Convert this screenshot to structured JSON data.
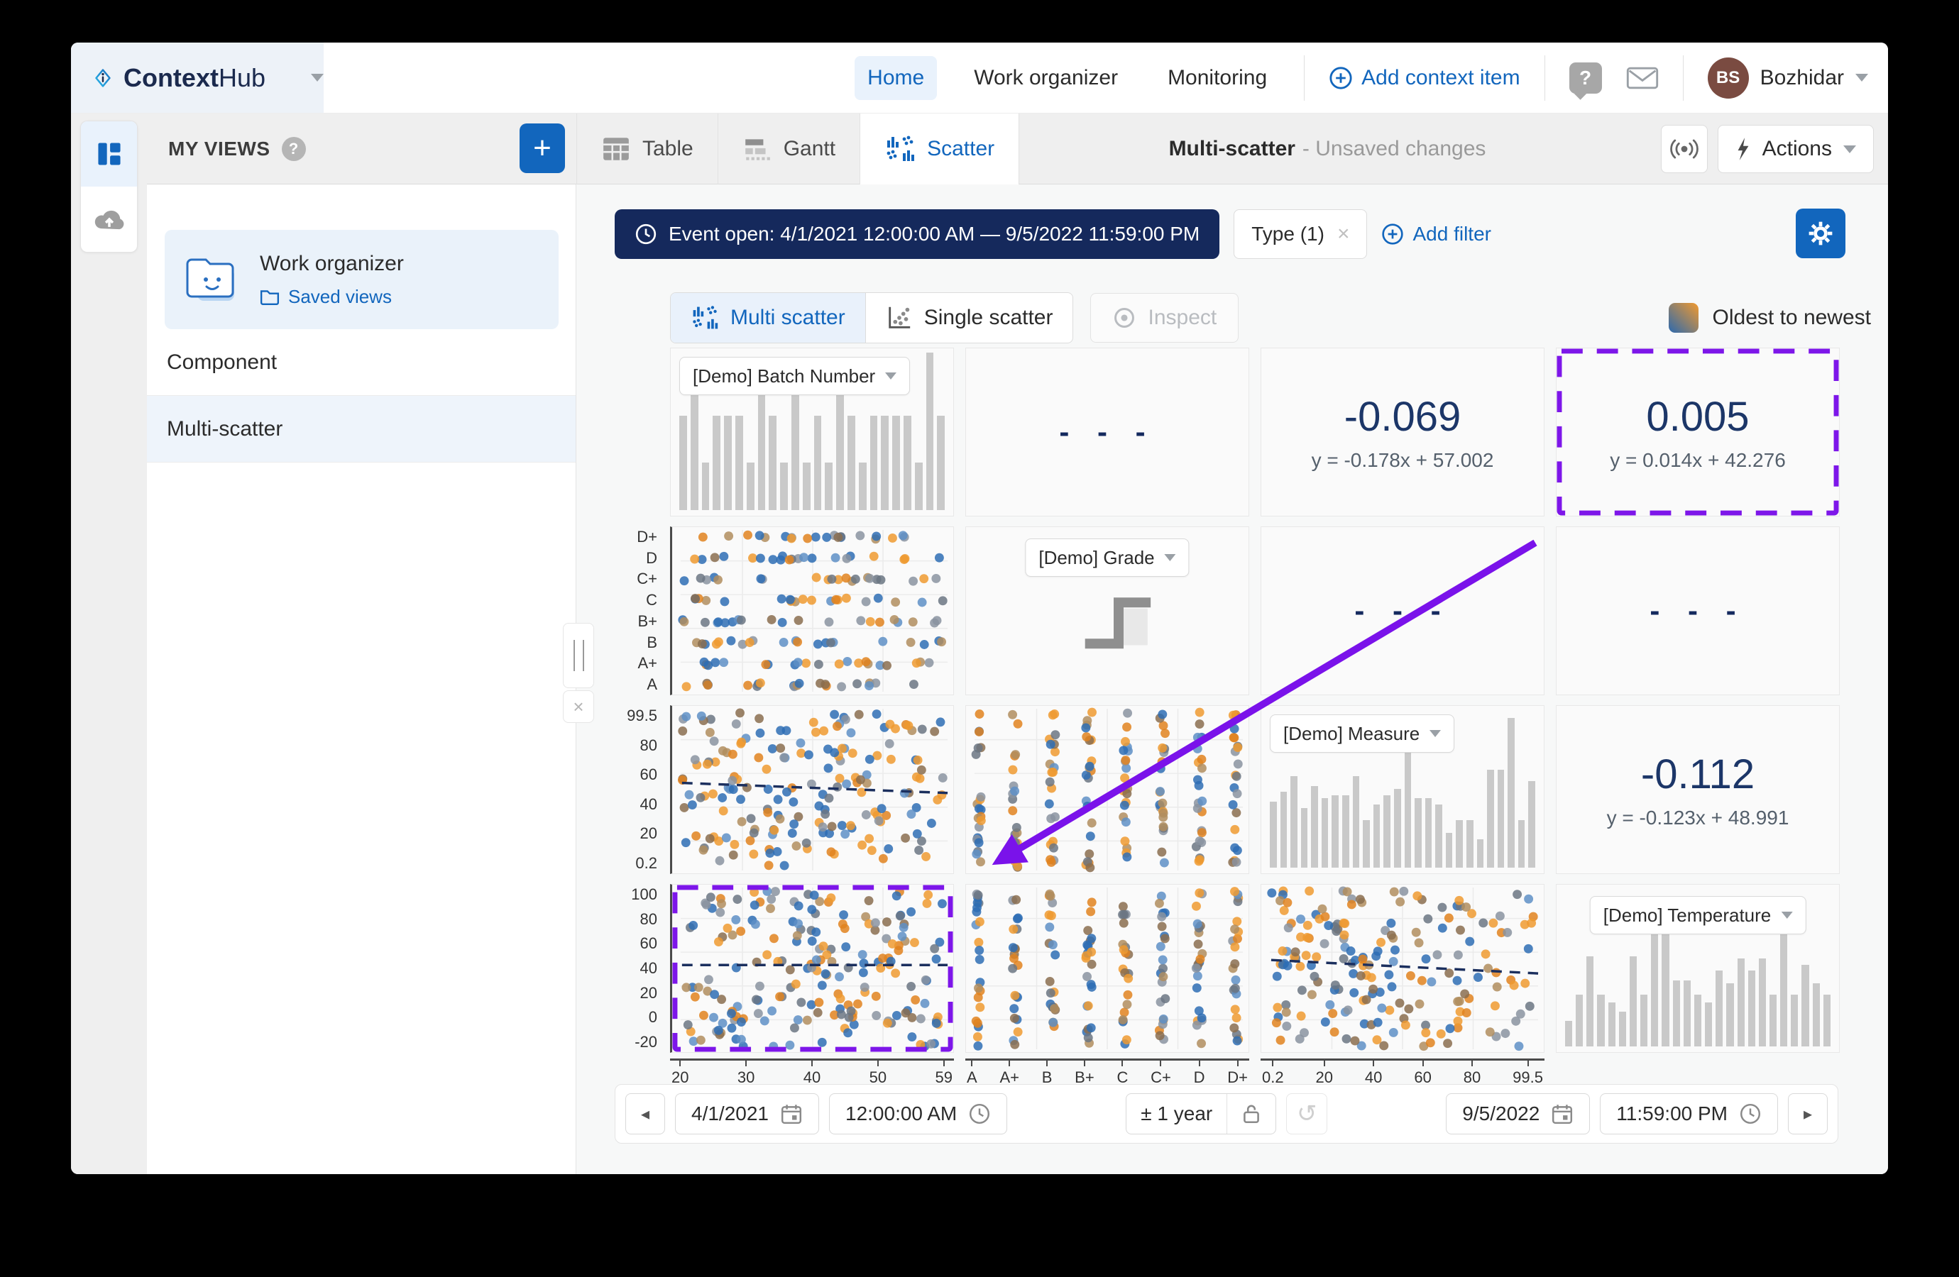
{
  "nav": {
    "brand_bold": "Context",
    "brand_light": "Hub",
    "items": [
      {
        "label": "Home",
        "active": true
      },
      {
        "label": "Work organizer",
        "active": false
      },
      {
        "label": "Monitoring",
        "active": false
      }
    ],
    "add_context_item": "Add context item",
    "user": {
      "initials": "BS",
      "name": "Bozhidar"
    }
  },
  "sidebar": {
    "title": "MY VIEWS",
    "card": {
      "title": "Work organizer",
      "link": "Saved views"
    },
    "items": [
      {
        "label": "Component",
        "selected": false
      },
      {
        "label": "Multi-scatter",
        "selected": true
      }
    ]
  },
  "viewbar": {
    "tabs": [
      {
        "label": "Table",
        "active": false
      },
      {
        "label": "Gantt",
        "active": false
      },
      {
        "label": "Scatter",
        "active": true
      }
    ],
    "title": "Multi-scatter",
    "subtitle": "- Unsaved changes",
    "actions_label": "Actions"
  },
  "filterbar": {
    "event_filter": "Event open: 4/1/2021 12:00:00 AM — 9/5/2022 11:59:00 PM",
    "type_filter": "Type (1)",
    "add_filter": "Add filter"
  },
  "controls": {
    "multi_scatter": "Multi scatter",
    "single_scatter": "Single scatter",
    "inspect": "Inspect",
    "legend": "Oldest to newest"
  },
  "matrix": {
    "variables": [
      "[Demo] Batch Number",
      "[Demo] Grade",
      "[Demo] Measure",
      "[Demo] Temperature"
    ],
    "grade_y_ticks": [
      "D+",
      "D",
      "C+",
      "C",
      "B+",
      "B",
      "A+",
      "A"
    ],
    "measure_y_ticks": [
      "99.5",
      "80",
      "60",
      "40",
      "20",
      "0.2"
    ],
    "temperature_y_ticks": [
      "100",
      "80",
      "60",
      "40",
      "20",
      "0",
      "-20"
    ],
    "batch_x_ticks": [
      "20",
      "30",
      "40",
      "50",
      "59"
    ],
    "grade_x_ticks": [
      "A",
      "A+",
      "B",
      "B+",
      "C",
      "C+",
      "D",
      "D+"
    ],
    "measure_x_ticks": [
      "0.2",
      "20",
      "40",
      "60",
      "80",
      "99.5"
    ],
    "cells": {
      "r1c2": "- - -",
      "r1c3": {
        "corr": "-0.069",
        "eq": "y = -0.178x + 57.002"
      },
      "r1c4": {
        "corr": "0.005",
        "eq": "y = 0.014x + 42.276",
        "selected": true
      },
      "r2c3": "- - -",
      "r2c4": "- - -",
      "r3c4": {
        "corr": "-0.112",
        "eq": "y = -0.123x + 48.991"
      }
    },
    "histograms": {
      "batch": [
        60,
        88,
        30,
        60,
        60,
        60,
        30,
        88,
        60,
        30,
        88,
        30,
        60,
        30,
        88,
        60,
        30,
        60,
        60,
        60,
        60,
        30,
        100,
        60
      ],
      "measure": [
        42,
        48,
        58,
        38,
        52,
        44,
        46,
        46,
        58,
        30,
        40,
        46,
        50,
        75,
        44,
        44,
        40,
        22,
        30,
        30,
        18,
        62,
        62,
        95,
        30,
        55
      ],
      "temperature": [
        16,
        33,
        57,
        33,
        28,
        22,
        57,
        33,
        72,
        74,
        42,
        42,
        33,
        28,
        48,
        40,
        56,
        48,
        56,
        33,
        74,
        33,
        52,
        40,
        33
      ]
    }
  },
  "plots": {
    "r2c1": {
      "kind": "rows",
      "seed": 11,
      "per": 21
    },
    "r3c1": {
      "kind": "numeric",
      "seed": 22,
      "n": 180,
      "trend": [
        46,
        52
      ]
    },
    "r3c2": {
      "kind": "cols",
      "seed": 33,
      "per": 22
    },
    "r4c1": {
      "kind": "numeric",
      "seed": 44,
      "n": 195,
      "trend": [
        48,
        48
      ]
    },
    "r4c2": {
      "kind": "cols",
      "seed": 55,
      "per": 22
    },
    "r4c3": {
      "kind": "numeric",
      "seed": 66,
      "n": 185,
      "trend": [
        45,
        53
      ]
    }
  },
  "scatter_style": {
    "palette": [
      "#2e6db4",
      "#2e6db4",
      "#5e8fc6",
      "#8a93a0",
      "#6b7683",
      "#8a6d4f",
      "#b08d5e",
      "#ef9a30",
      "#ef9a30",
      "#e0831f"
    ],
    "dot_radius": 6.5,
    "opacity": 0.85
  },
  "timebar": {
    "start_date": "4/1/2021",
    "start_time": "12:00:00 AM",
    "range": "± 1 year",
    "end_date": "9/5/2022",
    "end_time": "11:59:00 PM"
  },
  "colors": {
    "accent_blue": "#1266bd",
    "filter_navy": "#15295c",
    "correlation_navy": "#1c3668",
    "selection_purple": "#7d16e9",
    "legend_gradient_start": "#2c69ae",
    "legend_gradient_end": "#f29a2e",
    "bar_gray": "#c9c9c9"
  }
}
